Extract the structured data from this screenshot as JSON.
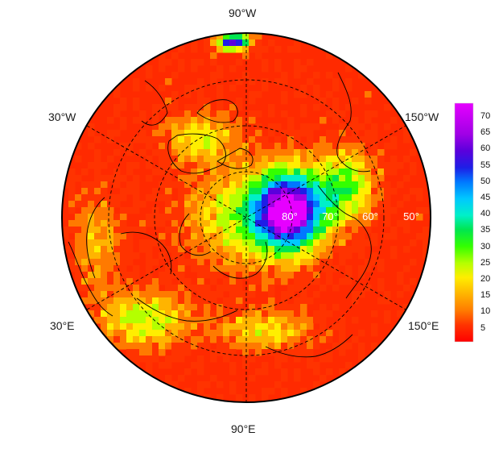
{
  "map": {
    "projection": "north-polar-stereographic",
    "lon_labels": {
      "top": "90°W",
      "bottom": "90°E",
      "left_upper": "30°W",
      "left_lower": "30°E",
      "right_upper": "150°W",
      "right_lower": "150°E"
    },
    "lat_labels": [
      "80°",
      "70°",
      "60°",
      "50°"
    ],
    "palette": [
      "#ff0000",
      "#ff3300",
      "#ff7a00",
      "#ffb400",
      "#ffee00",
      "#b4ff00",
      "#33ff00",
      "#00e650",
      "#00f0c8",
      "#00c8ff",
      "#0078ff",
      "#1e1ee6",
      "#5a00dc",
      "#a000e6",
      "#e600ff"
    ]
  },
  "colorbar": {
    "ticks": [
      "70",
      "65",
      "60",
      "55",
      "50",
      "45",
      "40",
      "35",
      "30",
      "25",
      "20",
      "15",
      "10",
      "5"
    ],
    "min": 0,
    "max": 75
  }
}
